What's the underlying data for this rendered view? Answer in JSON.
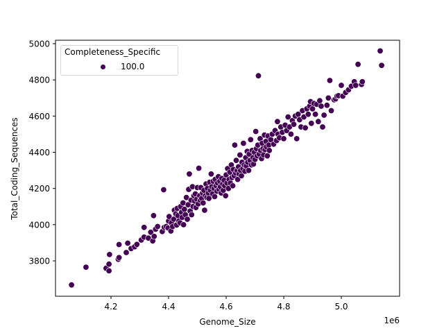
{
  "chart_data": {
    "type": "scatter",
    "title": "",
    "xlabel": "Genome_Size",
    "ylabel": "Total_Coding_Sequences",
    "x_offset_label": "1e6",
    "xlim": [
      4030000,
      5170000
    ],
    "ylim": [
      3610000,
      5020
    ],
    "x_ticks": [
      4.2,
      4.4,
      4.6,
      4.8,
      5.0
    ],
    "y_ticks": [
      3800,
      4000,
      4200,
      4400,
      4600,
      4800,
      5000
    ],
    "grid": false,
    "legend": {
      "title": "Completeness_Specific",
      "position": "upper left",
      "entries": [
        {
          "label": "100.0",
          "color": "#440154"
        }
      ]
    },
    "series": [
      {
        "name": "100.0",
        "color": "#440154",
        "points": [
          [
            4.063,
            3667
          ],
          [
            4.113,
            3765
          ],
          [
            4.183,
            3759
          ],
          [
            4.193,
            3782
          ],
          [
            4.193,
            3745
          ],
          [
            4.195,
            3835
          ],
          [
            4.225,
            3809
          ],
          [
            4.228,
            3818
          ],
          [
            4.228,
            3890
          ],
          [
            4.253,
            3846
          ],
          [
            4.258,
            3898
          ],
          [
            4.27,
            3868
          ],
          [
            4.282,
            3878
          ],
          [
            4.29,
            3891
          ],
          [
            4.305,
            3915
          ],
          [
            4.315,
            3931
          ],
          [
            4.315,
            3985
          ],
          [
            4.33,
            3926
          ],
          [
            4.338,
            3958
          ],
          [
            4.345,
            3910
          ],
          [
            4.348,
            4050
          ],
          [
            4.35,
            3935
          ],
          [
            4.355,
            3975
          ],
          [
            4.362,
            3990
          ],
          [
            4.378,
            3962
          ],
          [
            4.383,
            4193
          ],
          [
            4.385,
            3985
          ],
          [
            4.392,
            3990
          ],
          [
            4.398,
            3982
          ],
          [
            4.4,
            4020
          ],
          [
            4.402,
            4045
          ],
          [
            4.408,
            3965
          ],
          [
            4.41,
            4010
          ],
          [
            4.414,
            3990
          ],
          [
            4.418,
            4030
          ],
          [
            4.42,
            4080
          ],
          [
            4.425,
            4060
          ],
          [
            4.428,
            3998
          ],
          [
            4.43,
            4090
          ],
          [
            4.432,
            4050
          ],
          [
            4.436,
            4020
          ],
          [
            4.44,
            4010
          ],
          [
            4.442,
            4100
          ],
          [
            4.445,
            4068
          ],
          [
            4.447,
            4040
          ],
          [
            4.45,
            4120
          ],
          [
            4.452,
            4000
          ],
          [
            4.455,
            4085
          ],
          [
            4.458,
            4055
          ],
          [
            4.462,
            4150
          ],
          [
            4.465,
            4030
          ],
          [
            4.468,
            4110
          ],
          [
            4.47,
            4195
          ],
          [
            4.472,
            4280
          ],
          [
            4.475,
            4075
          ],
          [
            4.478,
            4135
          ],
          [
            4.48,
            4055
          ],
          [
            4.483,
            4210
          ],
          [
            4.485,
            4100
          ],
          [
            4.488,
            4160
          ],
          [
            4.49,
            4130
          ],
          [
            4.493,
            4170
          ],
          [
            4.495,
            4095
          ],
          [
            4.498,
            4140
          ],
          [
            4.5,
            4205
          ],
          [
            4.503,
            4115
          ],
          [
            4.505,
            4312
          ],
          [
            4.508,
            4160
          ],
          [
            4.51,
            4135
          ],
          [
            4.512,
            4205
          ],
          [
            4.515,
            4145
          ],
          [
            4.518,
            4175
          ],
          [
            4.52,
            4120
          ],
          [
            4.523,
            4190
          ],
          [
            4.525,
            4080
          ],
          [
            4.528,
            4160
          ],
          [
            4.53,
            4225
          ],
          [
            4.533,
            4150
          ],
          [
            4.535,
            4200
          ],
          [
            4.538,
            4175
          ],
          [
            4.54,
            4145
          ],
          [
            4.543,
            4235
          ],
          [
            4.545,
            4190
          ],
          [
            4.548,
            4280
          ],
          [
            4.55,
            4210
          ],
          [
            4.553,
            4170
          ],
          [
            4.555,
            4240
          ],
          [
            4.558,
            4200
          ],
          [
            4.56,
            4155
          ],
          [
            4.562,
            4250
          ],
          [
            4.565,
            4215
          ],
          [
            4.568,
            4185
          ],
          [
            4.57,
            4230
          ],
          [
            4.573,
            4265
          ],
          [
            4.575,
            4195
          ],
          [
            4.578,
            4240
          ],
          [
            4.58,
            4210
          ],
          [
            4.583,
            4175
          ],
          [
            4.585,
            4255
          ],
          [
            4.588,
            4225
          ],
          [
            4.59,
            4190
          ],
          [
            4.593,
            4245
          ],
          [
            4.595,
            4215
          ],
          [
            4.598,
            4160
          ],
          [
            4.6,
            4275
          ],
          [
            4.603,
            4230
          ],
          [
            4.605,
            4310
          ],
          [
            4.608,
            4200
          ],
          [
            4.61,
            4250
          ],
          [
            4.613,
            4290
          ],
          [
            4.615,
            4230
          ],
          [
            4.618,
            4330
          ],
          [
            4.62,
            4260
          ],
          [
            4.623,
            4215
          ],
          [
            4.625,
            4305
          ],
          [
            4.628,
            4270
          ],
          [
            4.63,
            4440
          ],
          [
            4.633,
            4285
          ],
          [
            4.635,
            4355
          ],
          [
            4.638,
            4300
          ],
          [
            4.64,
            4250
          ],
          [
            4.643,
            4320
          ],
          [
            4.645,
            4280
          ],
          [
            4.648,
            4385
          ],
          [
            4.65,
            4300
          ],
          [
            4.653,
            4270
          ],
          [
            4.655,
            4345
          ],
          [
            4.658,
            4310
          ],
          [
            4.66,
            4450
          ],
          [
            4.663,
            4330
          ],
          [
            4.665,
            4295
          ],
          [
            4.668,
            4370
          ],
          [
            4.67,
            4325
          ],
          [
            4.673,
            4405
          ],
          [
            4.675,
            4345
          ],
          [
            4.678,
            4300
          ],
          [
            4.68,
            4390
          ],
          [
            4.683,
            4355
          ],
          [
            4.685,
            4470
          ],
          [
            4.688,
            4330
          ],
          [
            4.69,
            4410
          ],
          [
            4.693,
            4370
          ],
          [
            4.695,
            4335
          ],
          [
            4.698,
            4400
          ],
          [
            4.7,
            4360
          ],
          [
            4.703,
            4515
          ],
          [
            4.705,
            4420
          ],
          [
            4.708,
            4380
          ],
          [
            4.71,
            4440
          ],
          [
            4.712,
            4823
          ],
          [
            4.715,
            4390
          ],
          [
            4.718,
            4475
          ],
          [
            4.72,
            4410
          ],
          [
            4.723,
            4365
          ],
          [
            4.725,
            4450
          ],
          [
            4.728,
            4420
          ],
          [
            4.73,
            4385
          ],
          [
            4.733,
            4495
          ],
          [
            4.735,
            4415
          ],
          [
            4.738,
            4460
          ],
          [
            4.74,
            4430
          ],
          [
            4.743,
            4380
          ],
          [
            4.745,
            4490
          ],
          [
            4.748,
            4440
          ],
          [
            4.75,
            4410
          ],
          [
            4.755,
            4470
          ],
          [
            4.76,
            4500
          ],
          [
            4.765,
            4445
          ],
          [
            4.77,
            4520
          ],
          [
            4.775,
            4465
          ],
          [
            4.778,
            4570
          ],
          [
            4.78,
            4500
          ],
          [
            4.785,
            4480
          ],
          [
            4.79,
            4540
          ],
          [
            4.795,
            4510
          ],
          [
            4.8,
            4475
          ],
          [
            4.805,
            4550
          ],
          [
            4.81,
            4520
          ],
          [
            4.815,
            4595
          ],
          [
            4.82,
            4540
          ],
          [
            4.825,
            4500
          ],
          [
            4.83,
            4575
          ],
          [
            4.835,
            4555
          ],
          [
            4.84,
            4600
          ],
          [
            4.845,
            4475
          ],
          [
            4.85,
            4610
          ],
          [
            4.855,
            4580
          ],
          [
            4.86,
            4540
          ],
          [
            4.865,
            4630
          ],
          [
            4.87,
            4595
          ],
          [
            4.875,
            4535
          ],
          [
            4.88,
            4640
          ],
          [
            4.885,
            4610
          ],
          [
            4.89,
            4655
          ],
          [
            4.893,
            4680
          ],
          [
            4.896,
            4560
          ],
          [
            4.9,
            4640
          ],
          [
            4.905,
            4670
          ],
          [
            4.91,
            4610
          ],
          [
            4.915,
            4665
          ],
          [
            4.92,
            4570
          ],
          [
            4.925,
            4685
          ],
          [
            4.93,
            4655
          ],
          [
            4.935,
            4540
          ],
          [
            4.94,
            4605
          ],
          [
            4.95,
            4660
          ],
          [
            4.955,
            4700
          ],
          [
            4.96,
            4797
          ],
          [
            4.965,
            4630
          ],
          [
            4.975,
            4690
          ],
          [
            4.98,
            4695
          ],
          [
            4.985,
            4710
          ],
          [
            4.99,
            4713
          ],
          [
            5.0,
            4770
          ],
          [
            5.005,
            4710
          ],
          [
            5.015,
            4730
          ],
          [
            5.025,
            4745
          ],
          [
            5.035,
            4765
          ],
          [
            5.045,
            4790
          ],
          [
            5.05,
            4770
          ],
          [
            5.058,
            4886
          ],
          [
            5.07,
            4775
          ],
          [
            5.073,
            4790
          ],
          [
            5.135,
            4960
          ],
          [
            5.14,
            4880
          ]
        ]
      }
    ]
  }
}
